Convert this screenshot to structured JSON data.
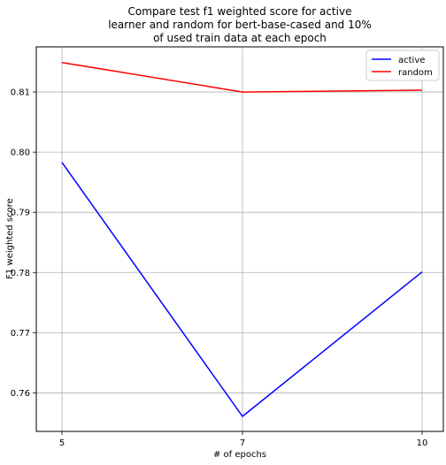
{
  "chart_data": {
    "type": "line",
    "title": [
      "Compare test f1 weighted score for active",
      "learner and random for bert-base-cased and 10%",
      "of used train data at each epoch"
    ],
    "xlabel": "# of epochs",
    "ylabel": "F1 weighted score",
    "x": [
      5,
      7,
      10
    ],
    "x_tick_labels": [
      "5",
      "7",
      "10"
    ],
    "x_scale": "categorical",
    "y_ticks": [
      0.76,
      0.77,
      0.78,
      0.79,
      0.8,
      0.81
    ],
    "y_tick_labels": [
      "0.76",
      "0.77",
      "0.78",
      "0.79",
      "0.80",
      "0.81"
    ],
    "ylim": [
      0.7536,
      0.8175
    ],
    "grid": true,
    "legend_position": "top-right",
    "series": [
      {
        "name": "active",
        "color": "#0000ff",
        "values": [
          0.7983,
          0.7561,
          0.7801
        ]
      },
      {
        "name": "random",
        "color": "#ff0000",
        "values": [
          0.8149,
          0.81,
          0.8103
        ]
      }
    ]
  }
}
